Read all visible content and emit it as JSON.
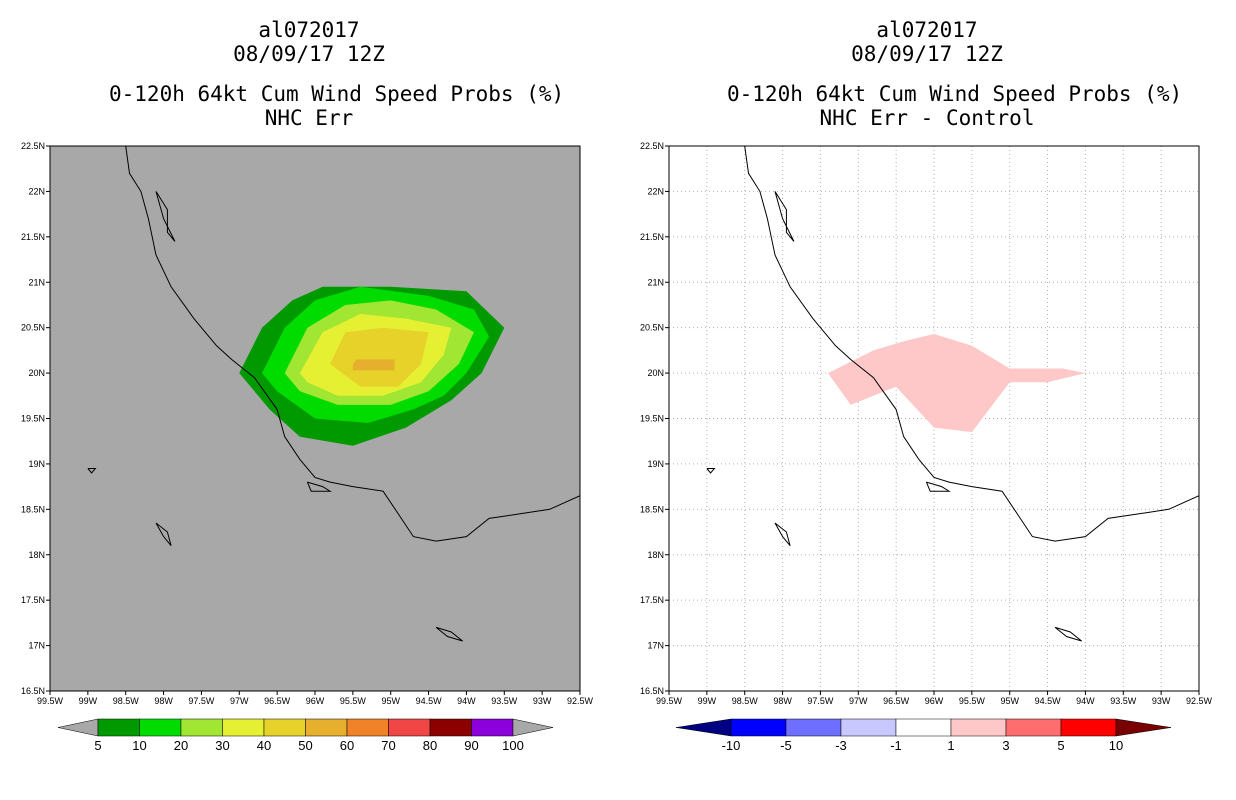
{
  "panels": [
    {
      "id": "left",
      "title_lines": [
        "al072017",
        "08/09/17 12Z",
        "0-120h 64kt Cum Wind Speed Probs (%)",
        "NHC Err"
      ],
      "background": "#a8a8a8",
      "grid": false,
      "colorbar": {
        "labels": [
          "5",
          "10",
          "20",
          "30",
          "40",
          "50",
          "60",
          "70",
          "80",
          "90",
          "100"
        ],
        "colors": [
          "#a8a8a8",
          "#009a00",
          "#00dc00",
          "#a0e632",
          "#e6f032",
          "#e6d228",
          "#e6af2d",
          "#f08228",
          "#f04646",
          "#8c0000",
          "#8c00dc",
          "#a8a8a8"
        ]
      }
    },
    {
      "id": "right",
      "title_lines": [
        "al072017",
        "08/09/17 12Z",
        "0-120h 64kt Cum Wind Speed Probs (%)",
        "NHC Err - Control"
      ],
      "background": "#ffffff",
      "grid": true,
      "colorbar": {
        "labels": [
          "-10",
          "-5",
          "-3",
          "-1",
          "1",
          "3",
          "5",
          "10"
        ],
        "colors": [
          "#000082",
          "#0000ff",
          "#6e6eff",
          "#c8c8ff",
          "#ffffff",
          "#ffc8c8",
          "#ff6e6e",
          "#ff0000",
          "#780000"
        ]
      }
    }
  ],
  "map": {
    "lat_labels": [
      "22.5N",
      "22N",
      "21.5N",
      "21N",
      "20.5N",
      "20N",
      "19.5N",
      "19N",
      "18.5N",
      "18N",
      "17.5N",
      "17N",
      "16.5N"
    ],
    "lon_labels": [
      "99.5W",
      "99W",
      "98.5W",
      "98W",
      "97.5W",
      "97W",
      "96.5W",
      "96W",
      "95.5W",
      "95W",
      "94.5W",
      "94W",
      "93.5W",
      "93W",
      "92.5W"
    ],
    "lat_range": [
      16.5,
      22.5
    ],
    "lon_range": [
      -99.5,
      -92.5
    ]
  },
  "prob_contours": [
    {
      "level": 5,
      "color": "#009a00",
      "poly": [
        [
          -97.0,
          20.0
        ],
        [
          -96.7,
          20.5
        ],
        [
          -96.3,
          20.8
        ],
        [
          -95.9,
          20.95
        ],
        [
          -95.0,
          20.95
        ],
        [
          -94.0,
          20.9
        ],
        [
          -93.5,
          20.5
        ],
        [
          -93.8,
          20.0
        ],
        [
          -94.2,
          19.7
        ],
        [
          -94.8,
          19.4
        ],
        [
          -95.5,
          19.2
        ],
        [
          -96.2,
          19.3
        ],
        [
          -96.6,
          19.6
        ],
        [
          -97.0,
          20.0
        ]
      ]
    },
    {
      "level": 10,
      "color": "#00dc00",
      "poly": [
        [
          -96.7,
          20.0
        ],
        [
          -96.4,
          20.5
        ],
        [
          -96.0,
          20.8
        ],
        [
          -95.4,
          20.95
        ],
        [
          -94.5,
          20.85
        ],
        [
          -93.9,
          20.7
        ],
        [
          -93.7,
          20.4
        ],
        [
          -94.0,
          20.0
        ],
        [
          -94.3,
          19.75
        ],
        [
          -94.7,
          19.6
        ],
        [
          -95.3,
          19.45
        ],
        [
          -96.0,
          19.5
        ],
        [
          -96.5,
          19.8
        ],
        [
          -96.7,
          20.0
        ]
      ]
    },
    {
      "level": 20,
      "color": "#a0e632",
      "poly": [
        [
          -96.4,
          20.0
        ],
        [
          -96.1,
          20.5
        ],
        [
          -95.6,
          20.75
        ],
        [
          -95.0,
          20.8
        ],
        [
          -94.4,
          20.7
        ],
        [
          -93.9,
          20.45
        ],
        [
          -94.1,
          20.1
        ],
        [
          -94.5,
          19.8
        ],
        [
          -95.0,
          19.65
        ],
        [
          -95.7,
          19.65
        ],
        [
          -96.2,
          19.8
        ],
        [
          -96.4,
          20.0
        ]
      ]
    },
    {
      "level": 30,
      "color": "#e6f032",
      "poly": [
        [
          -96.2,
          20.0
        ],
        [
          -95.9,
          20.45
        ],
        [
          -95.4,
          20.65
        ],
        [
          -94.8,
          20.6
        ],
        [
          -94.2,
          20.5
        ],
        [
          -94.3,
          20.2
        ],
        [
          -94.6,
          19.9
        ],
        [
          -95.1,
          19.75
        ],
        [
          -95.7,
          19.75
        ],
        [
          -96.1,
          19.9
        ],
        [
          -96.2,
          20.0
        ]
      ]
    },
    {
      "level": 40,
      "color": "#e6d228",
      "poly": [
        [
          -95.8,
          20.1
        ],
        [
          -95.6,
          20.45
        ],
        [
          -95.1,
          20.5
        ],
        [
          -94.5,
          20.45
        ],
        [
          -94.6,
          20.1
        ],
        [
          -94.9,
          19.85
        ],
        [
          -95.4,
          19.85
        ],
        [
          -95.8,
          20.1
        ]
      ]
    },
    {
      "level": 50,
      "color": "#e6af2d",
      "poly": [
        [
          -95.5,
          20.1
        ],
        [
          -95.45,
          20.15
        ],
        [
          -94.95,
          20.15
        ],
        [
          -94.95,
          20.03
        ],
        [
          -95.5,
          20.03
        ],
        [
          -95.5,
          20.1
        ]
      ]
    }
  ],
  "diff_contours": [
    {
      "level": 1,
      "color": "#ffc8c8",
      "poly": [
        [
          -97.4,
          20.0
        ],
        [
          -96.8,
          20.25
        ],
        [
          -96.4,
          20.35
        ],
        [
          -96.0,
          20.43
        ],
        [
          -95.5,
          20.3
        ],
        [
          -95.0,
          20.05
        ],
        [
          -94.3,
          20.05
        ],
        [
          -94.0,
          20.0
        ],
        [
          -94.5,
          19.9
        ],
        [
          -95.0,
          19.9
        ],
        [
          -95.5,
          19.35
        ],
        [
          -96.0,
          19.4
        ],
        [
          -96.5,
          19.85
        ],
        [
          -97.1,
          19.65
        ],
        [
          -97.4,
          20.0
        ]
      ]
    }
  ],
  "coastline": [
    [
      -98.5,
      22.5
    ],
    [
      -98.45,
      22.2
    ],
    [
      -98.3,
      22.0
    ],
    [
      -98.2,
      21.7
    ],
    [
      -98.1,
      21.3
    ],
    [
      -97.9,
      20.95
    ],
    [
      -97.6,
      20.6
    ],
    [
      -97.3,
      20.3
    ],
    [
      -97.1,
      20.15
    ],
    [
      -96.8,
      19.95
    ],
    [
      -96.5,
      19.6
    ],
    [
      -96.4,
      19.3
    ],
    [
      -96.2,
      19.05
    ],
    [
      -96.0,
      18.85
    ],
    [
      -95.8,
      18.8
    ],
    [
      -95.5,
      18.75
    ],
    [
      -95.1,
      18.7
    ],
    [
      -94.9,
      18.45
    ],
    [
      -94.7,
      18.2
    ],
    [
      -94.4,
      18.15
    ],
    [
      -94.0,
      18.2
    ],
    [
      -93.7,
      18.4
    ],
    [
      -93.3,
      18.45
    ],
    [
      -92.9,
      18.5
    ],
    [
      -92.5,
      18.65
    ]
  ],
  "islands": [
    [
      [
        -98.1,
        22.0
      ],
      [
        -97.95,
        21.8
      ],
      [
        -97.95,
        21.55
      ],
      [
        -97.85,
        21.45
      ],
      [
        -98.0,
        21.7
      ],
      [
        -98.1,
        22.0
      ]
    ],
    [
      [
        -99.0,
        18.95
      ],
      [
        -98.95,
        18.9
      ],
      [
        -98.9,
        18.95
      ],
      [
        -99.0,
        18.95
      ]
    ],
    [
      [
        -98.1,
        18.35
      ],
      [
        -97.95,
        18.25
      ],
      [
        -97.9,
        18.1
      ],
      [
        -98.0,
        18.2
      ],
      [
        -98.1,
        18.35
      ]
    ],
    [
      [
        -94.4,
        17.2
      ],
      [
        -94.2,
        17.15
      ],
      [
        -94.05,
        17.05
      ],
      [
        -94.25,
        17.1
      ],
      [
        -94.4,
        17.2
      ]
    ],
    [
      [
        -96.1,
        18.8
      ],
      [
        -95.9,
        18.75
      ],
      [
        -95.8,
        18.7
      ],
      [
        -96.05,
        18.7
      ],
      [
        -96.1,
        18.8
      ]
    ]
  ]
}
